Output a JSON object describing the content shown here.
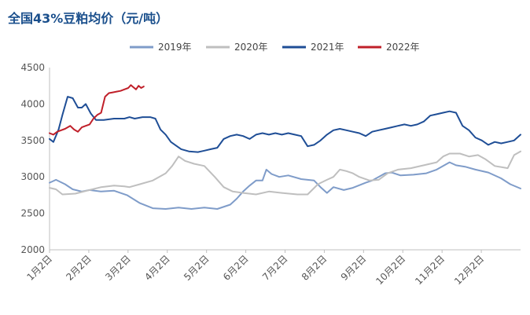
{
  "title": "全国43%豆粕均价（元/吨）",
  "chart_data": {
    "type": "line",
    "title": "全国43%豆粕均价（元/吨）",
    "xlabel": "",
    "ylabel": "",
    "x_tick_labels": [
      "1月2日",
      "2月2日",
      "3月2日",
      "4月2日",
      "5月2日",
      "6月2日",
      "7月2日",
      "8月2日",
      "9月2日",
      "10月2日",
      "11月2日",
      "12月2日"
    ],
    "x_domain": [
      0,
      365
    ],
    "ylim": [
      2000,
      4500
    ],
    "y_ticks": [
      2000,
      2500,
      3000,
      3500,
      4000,
      4500
    ],
    "grid": false,
    "legend_position": "top",
    "series": [
      {
        "name": "2019年",
        "color": "#7f9cc9",
        "points": [
          [
            0,
            2920
          ],
          [
            5,
            2960
          ],
          [
            12,
            2900
          ],
          [
            18,
            2830
          ],
          [
            25,
            2800
          ],
          [
            31,
            2820
          ],
          [
            40,
            2800
          ],
          [
            50,
            2810
          ],
          [
            60,
            2750
          ],
          [
            70,
            2640
          ],
          [
            80,
            2570
          ],
          [
            90,
            2560
          ],
          [
            100,
            2580
          ],
          [
            110,
            2560
          ],
          [
            120,
            2580
          ],
          [
            130,
            2560
          ],
          [
            140,
            2620
          ],
          [
            145,
            2700
          ],
          [
            150,
            2800
          ],
          [
            155,
            2880
          ],
          [
            160,
            2950
          ],
          [
            165,
            2950
          ],
          [
            168,
            3100
          ],
          [
            172,
            3040
          ],
          [
            178,
            3000
          ],
          [
            185,
            3020
          ],
          [
            195,
            2970
          ],
          [
            205,
            2950
          ],
          [
            210,
            2860
          ],
          [
            215,
            2780
          ],
          [
            220,
            2860
          ],
          [
            228,
            2820
          ],
          [
            235,
            2850
          ],
          [
            245,
            2920
          ],
          [
            250,
            2950
          ],
          [
            255,
            3000
          ],
          [
            260,
            3050
          ],
          [
            265,
            3060
          ],
          [
            272,
            3020
          ],
          [
            282,
            3030
          ],
          [
            292,
            3050
          ],
          [
            300,
            3100
          ],
          [
            305,
            3150
          ],
          [
            310,
            3200
          ],
          [
            315,
            3160
          ],
          [
            322,
            3140
          ],
          [
            330,
            3100
          ],
          [
            340,
            3060
          ],
          [
            350,
            2980
          ],
          [
            357,
            2900
          ],
          [
            365,
            2840
          ]
        ]
      },
      {
        "name": "2020年",
        "color": "#bfbfbf",
        "points": [
          [
            0,
            2850
          ],
          [
            5,
            2830
          ],
          [
            10,
            2760
          ],
          [
            20,
            2770
          ],
          [
            31,
            2820
          ],
          [
            40,
            2860
          ],
          [
            50,
            2880
          ],
          [
            58,
            2870
          ],
          [
            62,
            2860
          ],
          [
            70,
            2900
          ],
          [
            80,
            2950
          ],
          [
            90,
            3050
          ],
          [
            95,
            3150
          ],
          [
            100,
            3280
          ],
          [
            105,
            3220
          ],
          [
            112,
            3180
          ],
          [
            120,
            3150
          ],
          [
            128,
            3000
          ],
          [
            135,
            2860
          ],
          [
            142,
            2800
          ],
          [
            150,
            2780
          ],
          [
            160,
            2760
          ],
          [
            170,
            2800
          ],
          [
            180,
            2780
          ],
          [
            192,
            2760
          ],
          [
            200,
            2760
          ],
          [
            208,
            2900
          ],
          [
            215,
            2960
          ],
          [
            220,
            3000
          ],
          [
            225,
            3100
          ],
          [
            230,
            3080
          ],
          [
            235,
            3050
          ],
          [
            240,
            3000
          ],
          [
            248,
            2950
          ],
          [
            255,
            2960
          ],
          [
            262,
            3050
          ],
          [
            270,
            3100
          ],
          [
            280,
            3120
          ],
          [
            290,
            3160
          ],
          [
            300,
            3200
          ],
          [
            305,
            3280
          ],
          [
            310,
            3320
          ],
          [
            318,
            3320
          ],
          [
            325,
            3280
          ],
          [
            332,
            3300
          ],
          [
            338,
            3240
          ],
          [
            345,
            3150
          ],
          [
            355,
            3120
          ],
          [
            360,
            3300
          ],
          [
            365,
            3350
          ]
        ]
      },
      {
        "name": "2021年",
        "color": "#1f4e96",
        "points": [
          [
            0,
            3520
          ],
          [
            3,
            3480
          ],
          [
            7,
            3650
          ],
          [
            10,
            3850
          ],
          [
            14,
            4100
          ],
          [
            18,
            4080
          ],
          [
            22,
            3950
          ],
          [
            25,
            3950
          ],
          [
            28,
            4000
          ],
          [
            32,
            3870
          ],
          [
            36,
            3780
          ],
          [
            42,
            3780
          ],
          [
            50,
            3800
          ],
          [
            58,
            3800
          ],
          [
            62,
            3820
          ],
          [
            66,
            3800
          ],
          [
            72,
            3820
          ],
          [
            78,
            3820
          ],
          [
            82,
            3800
          ],
          [
            86,
            3650
          ],
          [
            90,
            3580
          ],
          [
            94,
            3480
          ],
          [
            98,
            3430
          ],
          [
            102,
            3380
          ],
          [
            108,
            3350
          ],
          [
            115,
            3340
          ],
          [
            120,
            3360
          ],
          [
            125,
            3380
          ],
          [
            130,
            3400
          ],
          [
            135,
            3520
          ],
          [
            140,
            3560
          ],
          [
            145,
            3580
          ],
          [
            150,
            3560
          ],
          [
            155,
            3520
          ],
          [
            160,
            3580
          ],
          [
            165,
            3600
          ],
          [
            170,
            3580
          ],
          [
            175,
            3600
          ],
          [
            180,
            3580
          ],
          [
            185,
            3600
          ],
          [
            190,
            3580
          ],
          [
            195,
            3560
          ],
          [
            200,
            3420
          ],
          [
            205,
            3440
          ],
          [
            210,
            3500
          ],
          [
            215,
            3580
          ],
          [
            220,
            3640
          ],
          [
            225,
            3660
          ],
          [
            230,
            3640
          ],
          [
            235,
            3620
          ],
          [
            240,
            3600
          ],
          [
            245,
            3560
          ],
          [
            250,
            3620
          ],
          [
            255,
            3640
          ],
          [
            260,
            3660
          ],
          [
            265,
            3680
          ],
          [
            270,
            3700
          ],
          [
            275,
            3720
          ],
          [
            280,
            3700
          ],
          [
            285,
            3720
          ],
          [
            290,
            3760
          ],
          [
            295,
            3840
          ],
          [
            300,
            3860
          ],
          [
            305,
            3880
          ],
          [
            310,
            3900
          ],
          [
            315,
            3880
          ],
          [
            320,
            3700
          ],
          [
            325,
            3640
          ],
          [
            330,
            3540
          ],
          [
            335,
            3500
          ],
          [
            340,
            3440
          ],
          [
            345,
            3480
          ],
          [
            350,
            3460
          ],
          [
            355,
            3480
          ],
          [
            360,
            3500
          ],
          [
            365,
            3580
          ]
        ]
      },
      {
        "name": "2022年",
        "color": "#c0202a",
        "points": [
          [
            0,
            3600
          ],
          [
            3,
            3580
          ],
          [
            6,
            3620
          ],
          [
            9,
            3640
          ],
          [
            12,
            3660
          ],
          [
            16,
            3700
          ],
          [
            19,
            3650
          ],
          [
            22,
            3620
          ],
          [
            25,
            3680
          ],
          [
            28,
            3700
          ],
          [
            31,
            3720
          ],
          [
            34,
            3800
          ],
          [
            37,
            3850
          ],
          [
            40,
            3880
          ],
          [
            43,
            4100
          ],
          [
            46,
            4150
          ],
          [
            49,
            4160
          ],
          [
            52,
            4170
          ],
          [
            55,
            4180
          ],
          [
            58,
            4200
          ],
          [
            61,
            4220
          ],
          [
            63,
            4260
          ],
          [
            65,
            4230
          ],
          [
            67,
            4200
          ],
          [
            69,
            4250
          ],
          [
            71,
            4220
          ],
          [
            73,
            4240
          ]
        ]
      }
    ]
  }
}
